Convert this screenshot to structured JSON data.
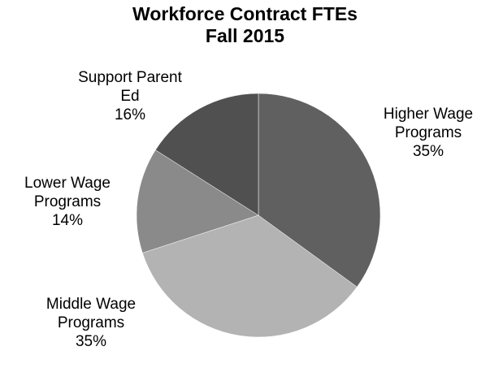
{
  "chart_data": {
    "type": "pie",
    "title": [
      "Workforce Contract FTEs",
      "Fall 2015"
    ],
    "categories": [
      "Higher Wage Programs",
      "Middle Wage Programs",
      "Lower Wage Programs",
      "Support Parent Ed"
    ],
    "values": [
      35,
      35,
      14,
      16
    ],
    "value_labels": [
      "35%",
      "35%",
      "14%",
      "16%"
    ],
    "colors": [
      "#606060",
      "#b3b3b3",
      "#8a8a8a",
      "#505050"
    ]
  }
}
